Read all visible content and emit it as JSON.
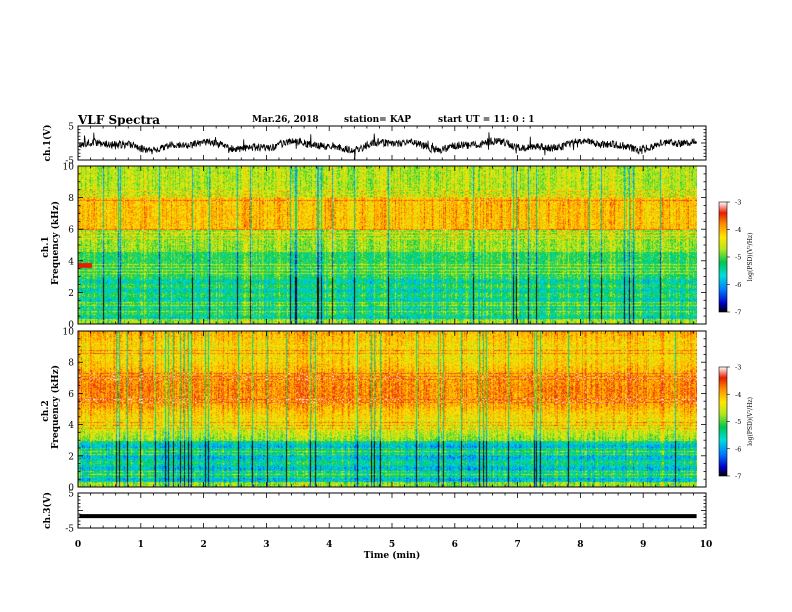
{
  "header": {
    "title": "VLF Spectra",
    "date": "Mar.26, 2018",
    "station": "station= KAP",
    "start": "start  UT =  11: 0  : 1"
  },
  "colors": {
    "background": "#ffffff",
    "trace": "#000000",
    "colormap": [
      "#000000",
      "#0000c8",
      "#0078ff",
      "#00dcdc",
      "#00c850",
      "#b4e61e",
      "#ffe600",
      "#ff8c00",
      "#e61e00",
      "#ffffff"
    ]
  },
  "chart_data": [
    {
      "type": "line",
      "ylabel": "ch.1(V)",
      "ylim": [
        -5,
        5
      ],
      "yticks": [
        "5",
        "-5"
      ],
      "xlim": [
        0,
        10
      ],
      "trace_level": [
        -1.8,
        1.2
      ],
      "grid": false
    },
    {
      "type": "heatmap",
      "ylabel_line1": "ch.1",
      "ylabel_line2": "Frequency (kHz)",
      "ylim": [
        0,
        10
      ],
      "yticks": [
        "0",
        "2",
        "4",
        "6",
        "8",
        "10"
      ],
      "xlim": [
        0,
        9.85
      ],
      "emission_band_khz": [
        6,
        8
      ],
      "quiet_band_khz": [
        0.3,
        3
      ],
      "colorbar": {
        "label": "log(PSD)(V²/Hz)",
        "range": [
          -7,
          -3
        ],
        "ticks": [
          "-3",
          "-4",
          "-5",
          "-6",
          "-7"
        ]
      }
    },
    {
      "type": "heatmap",
      "ylabel_line1": "ch.2",
      "ylabel_line2": "Frequency (kHz)",
      "ylim": [
        0,
        10
      ],
      "yticks": [
        "0",
        "2",
        "4",
        "6",
        "8",
        "10"
      ],
      "xlim": [
        0,
        9.85
      ],
      "emission_band_khz": [
        5,
        10
      ],
      "quiet_band_khz": [
        0.3,
        3
      ],
      "colorbar": {
        "label": "log(PSD)(V²/Hz)",
        "range": [
          -7,
          -3
        ],
        "ticks": [
          "-3",
          "-4",
          "-5",
          "-6",
          "-7"
        ]
      }
    },
    {
      "type": "line",
      "ylabel": "ch.3(V)",
      "ylim": [
        -5,
        5
      ],
      "yticks": [
        "5",
        "-5"
      ],
      "xlim": [
        0,
        10
      ],
      "trace_level": [
        -1.6,
        -1.6
      ],
      "grid": false
    }
  ],
  "xaxis": {
    "label": "Time (min)",
    "ticks": [
      "0",
      "1",
      "2",
      "3",
      "4",
      "5",
      "6",
      "7",
      "8",
      "9",
      "10"
    ],
    "range": [
      0,
      10
    ]
  }
}
